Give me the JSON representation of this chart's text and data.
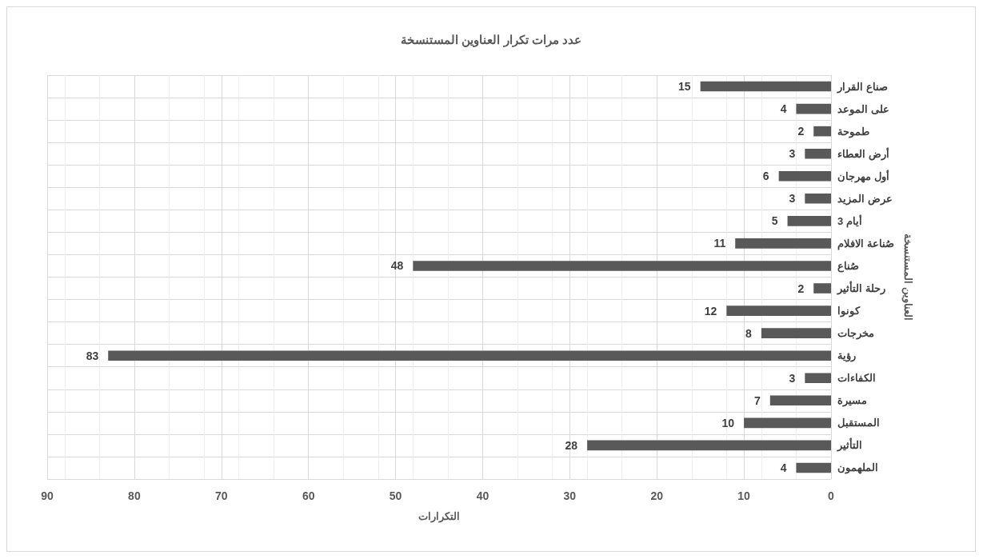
{
  "chart_data": {
    "type": "bar",
    "orientation": "horizontal",
    "title": "عدد مرات تكرار العناوين المستنسخة",
    "xlabel": "التكرارات",
    "ylabel": "العناوين المستنسخة",
    "categories": [
      "صناع القرار",
      "على الموعد",
      "طموحة",
      "أرض العطاء",
      "أول مهرجان",
      "عرض المزيد",
      "3 أيام",
      "صُناعة الافلام",
      "صُناع",
      "رحلة التأثير",
      "كونوا",
      "مخرجات",
      "رؤية",
      "الكفاءات",
      "مسيرة",
      "المستقبل",
      "التأثير",
      "الملهمون"
    ],
    "values": [
      15,
      4,
      2,
      3,
      6,
      3,
      5,
      11,
      48,
      2,
      12,
      8,
      83,
      3,
      7,
      10,
      28,
      4
    ],
    "color": "#595959",
    "data_labels": true,
    "xlim": [
      90,
      0
    ],
    "xticks": [
      0,
      10,
      20,
      30,
      40,
      50,
      60,
      70,
      80,
      90
    ],
    "grid": true
  }
}
